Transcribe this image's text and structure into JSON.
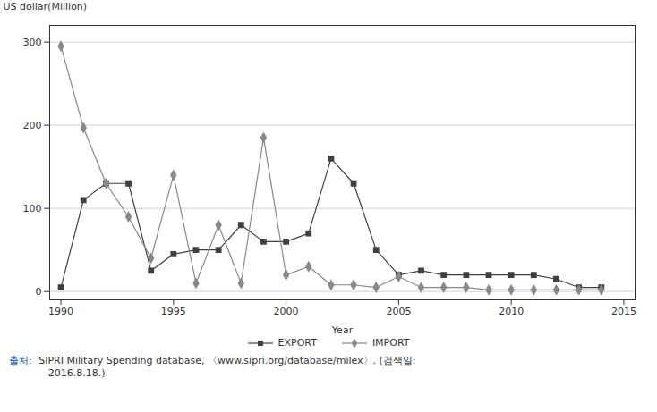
{
  "chart_data": {
    "type": "line",
    "x": [
      1990,
      1991,
      1992,
      1993,
      1994,
      1995,
      1996,
      1997,
      1998,
      1999,
      2000,
      2001,
      2002,
      2003,
      2004,
      2005,
      2006,
      2007,
      2008,
      2009,
      2010,
      2011,
      2012,
      2013,
      2014
    ],
    "series": [
      {
        "name": "EXPORT",
        "color": "#404040",
        "marker": "square",
        "values": [
          5,
          110,
          130,
          130,
          25,
          45,
          50,
          50,
          80,
          60,
          60,
          70,
          160,
          130,
          50,
          20,
          25,
          20,
          20,
          20,
          20,
          20,
          15,
          5,
          5
        ]
      },
      {
        "name": "IMPORT",
        "color": "#888888",
        "marker": "diamond",
        "values": [
          295,
          197,
          130,
          90,
          40,
          140,
          10,
          80,
          10,
          185,
          20,
          30,
          8,
          8,
          5,
          18,
          5,
          5,
          5,
          2,
          2,
          2,
          2,
          2,
          2
        ]
      }
    ],
    "xlabel": "Year",
    "ylabel": "US dollar(Million)",
    "xlim": [
      1989.5,
      2015.5
    ],
    "ylim": [
      -10,
      320
    ],
    "xticks": [
      1990,
      1995,
      2000,
      2005,
      2010,
      2015
    ],
    "yticks": [
      0,
      100,
      200,
      300
    ],
    "grid": "y",
    "legend": "bottom",
    "annotations": [
      {
        "text": "출처:",
        "color": "#0055aa"
      },
      {
        "text": " SIPRI Military Spending database, 〈www.sipri.org/database/milex〉. (검색일:\n    2016.8.18.).",
        "color": "#333333"
      }
    ]
  }
}
